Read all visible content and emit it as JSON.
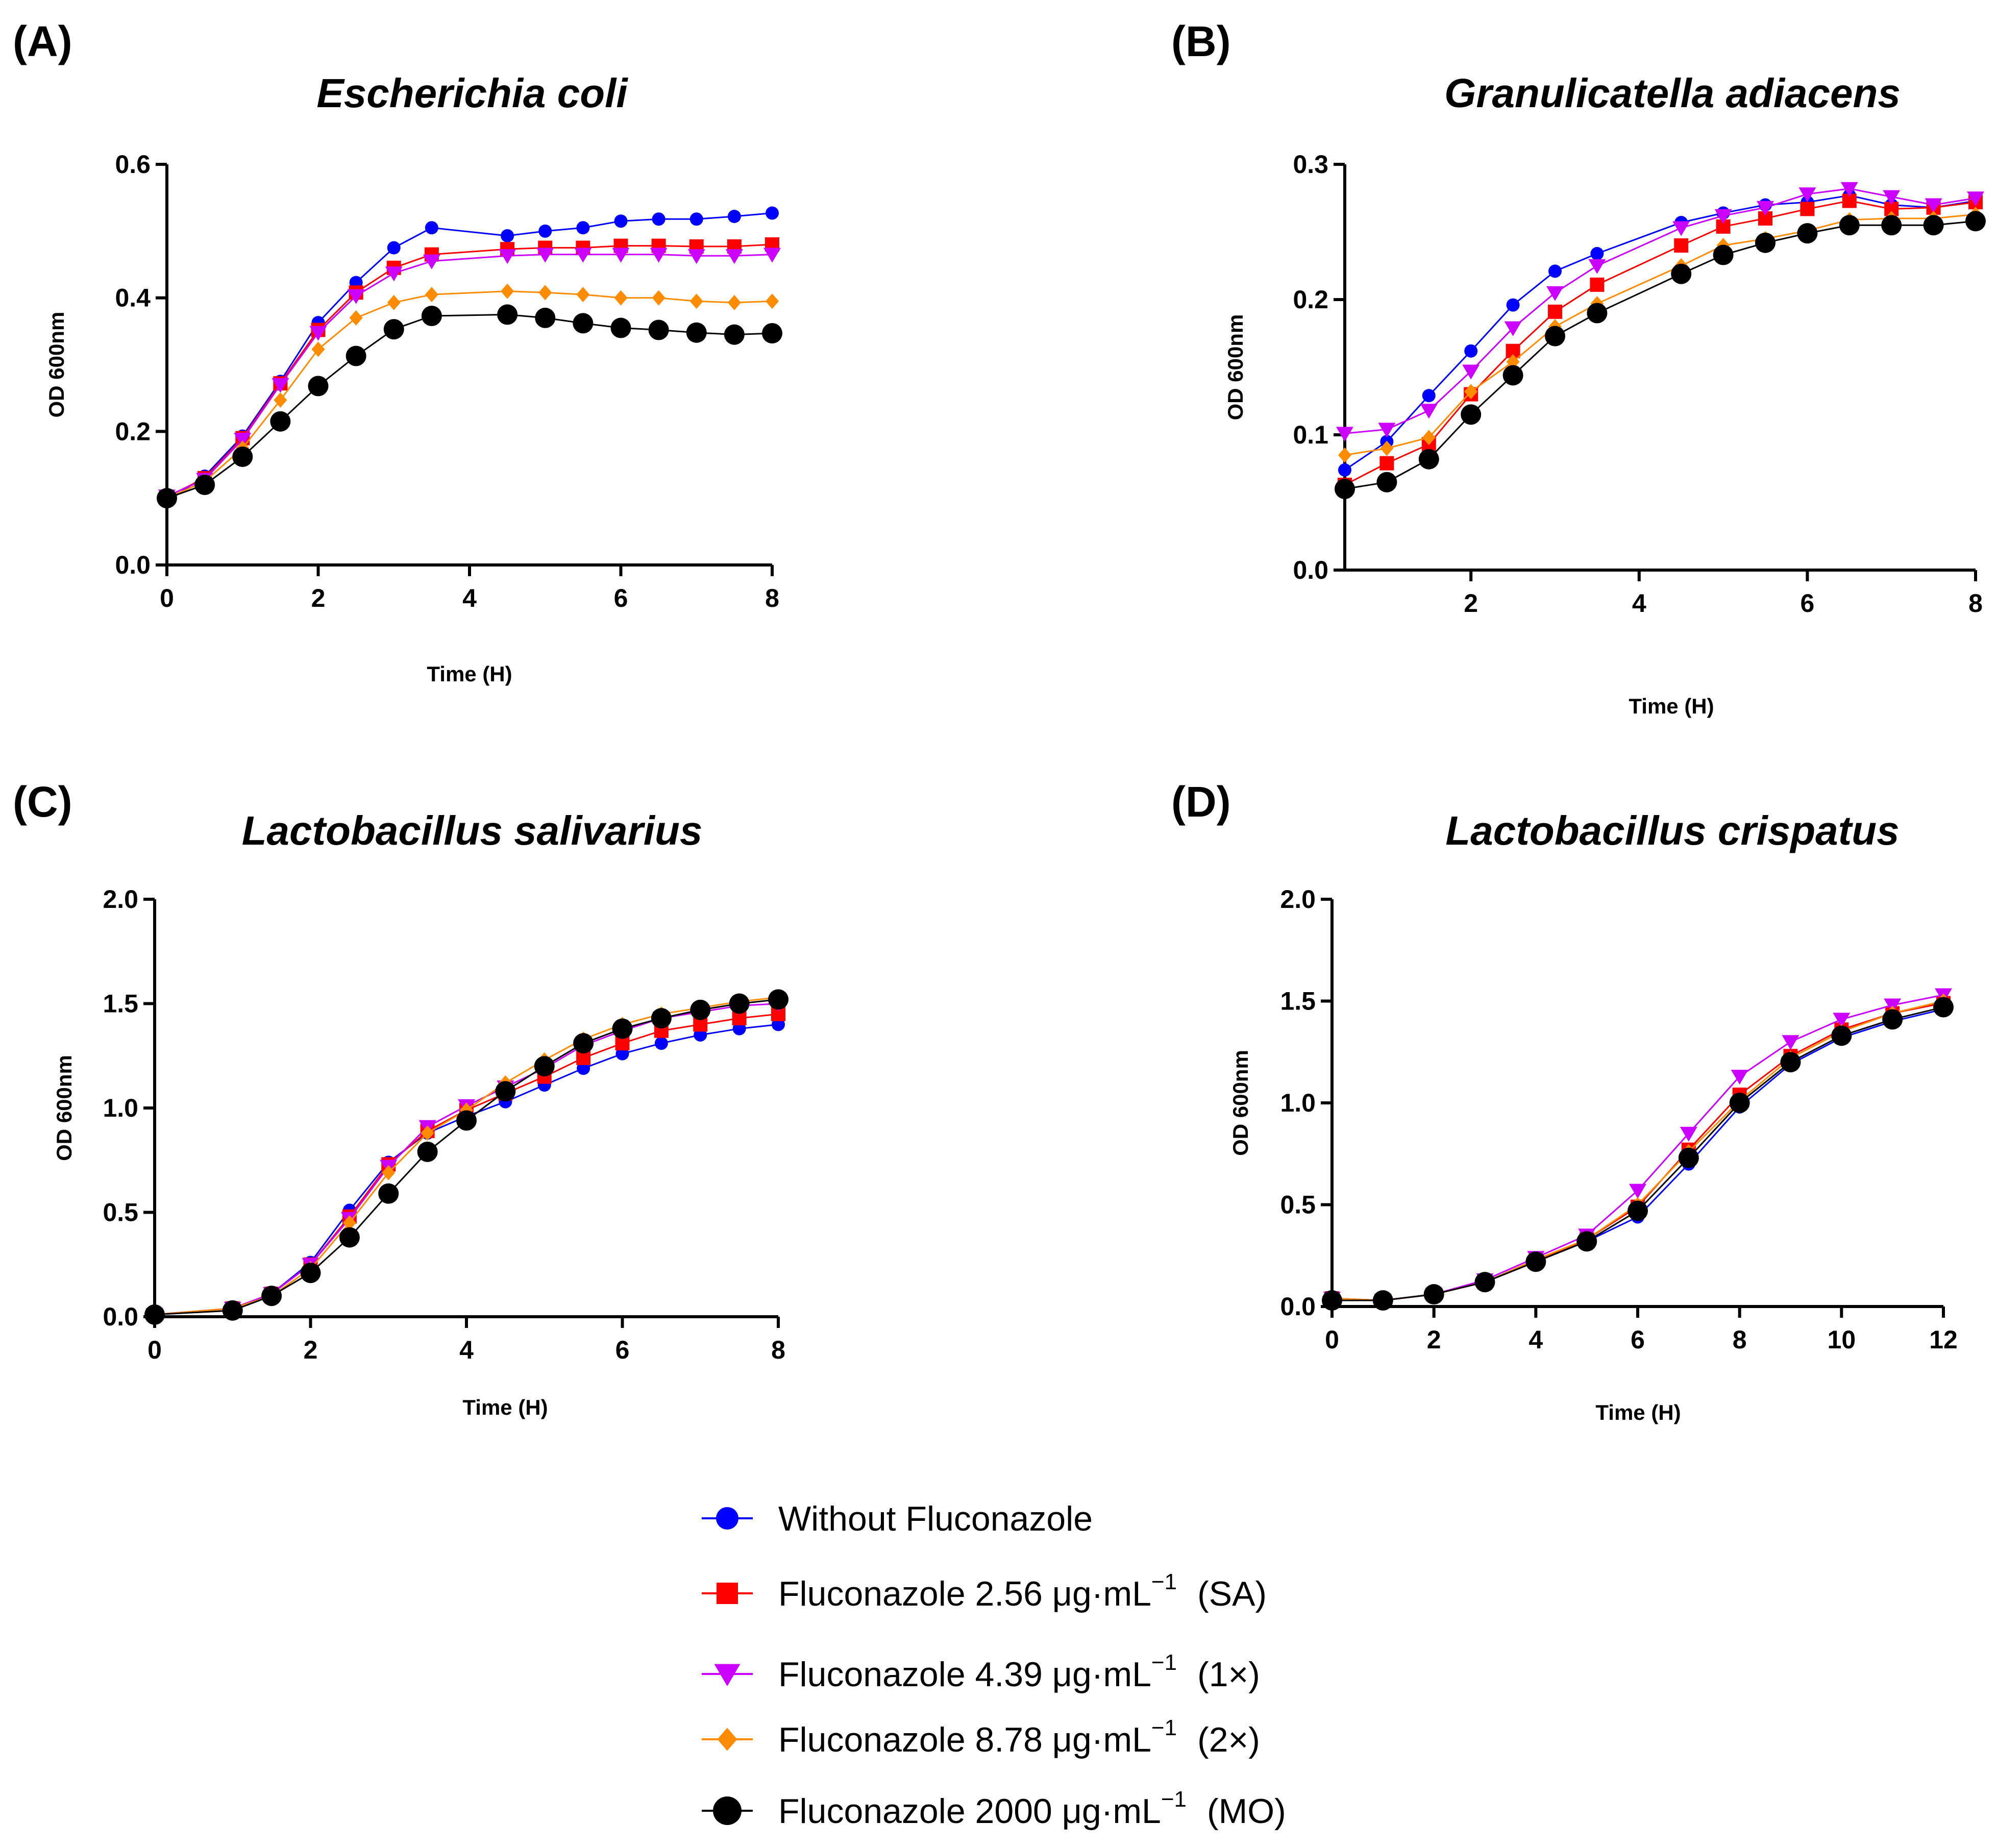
{
  "chart_data": [
    {
      "type": "line",
      "panel_label": "(A)",
      "title": "Escherichia coli",
      "xlabel": "Time (H)",
      "ylabel": "OD 600nm",
      "xlim": [
        0,
        8
      ],
      "ylim": [
        0,
        0.6
      ],
      "xticks": [
        0,
        2,
        4,
        6,
        8
      ],
      "yticks": [
        0.0,
        0.2,
        0.4,
        0.6
      ],
      "x_tick_labels": [
        "0",
        "2",
        "4",
        "6",
        "8"
      ],
      "y_tick_labels": [
        "0.0",
        "0.2",
        "0.4",
        "0.6"
      ],
      "x": [
        0,
        0.5,
        1,
        1.5,
        2,
        2.5,
        3,
        3.5,
        4.5,
        5,
        5.5,
        6,
        6.5,
        7,
        7.5,
        8
      ],
      "series": [
        {
          "key": "without",
          "values": [
            0.095,
            0.133,
            0.193,
            0.275,
            0.363,
            0.423,
            0.475,
            0.505,
            0.493,
            0.5,
            0.505,
            0.515,
            0.518,
            0.518,
            0.522,
            0.527
          ]
        },
        {
          "key": "sa",
          "values": [
            0.102,
            0.13,
            0.19,
            0.272,
            0.352,
            0.408,
            0.445,
            0.465,
            0.473,
            0.475,
            0.475,
            0.478,
            0.478,
            0.477,
            0.477,
            0.48
          ]
        },
        {
          "key": "x1",
          "values": [
            0.103,
            0.128,
            0.188,
            0.27,
            0.348,
            0.403,
            0.437,
            0.455,
            0.463,
            0.465,
            0.465,
            0.465,
            0.465,
            0.463,
            0.463,
            0.465
          ]
        },
        {
          "key": "x2",
          "values": [
            0.1,
            0.125,
            0.175,
            0.247,
            0.323,
            0.37,
            0.393,
            0.405,
            0.41,
            0.408,
            0.405,
            0.4,
            0.4,
            0.395,
            0.393,
            0.395
          ]
        },
        {
          "key": "mo",
          "values": [
            0.1,
            0.12,
            0.162,
            0.215,
            0.268,
            0.313,
            0.353,
            0.373,
            0.375,
            0.37,
            0.362,
            0.355,
            0.352,
            0.348,
            0.345,
            0.347
          ]
        }
      ]
    },
    {
      "type": "line",
      "panel_label": "(B)",
      "title": "Granulicatella adiacens",
      "xlabel": "Time (H)",
      "ylabel": "OD 600nm",
      "xlim": [
        0.5,
        8
      ],
      "ylim": [
        0,
        0.3
      ],
      "xticks": [
        2,
        4,
        6,
        8
      ],
      "yticks": [
        0.0,
        0.1,
        0.2,
        0.3
      ],
      "x_tick_labels": [
        "2",
        "4",
        "6",
        "8"
      ],
      "y_tick_labels": [
        "0.0",
        "0.1",
        "0.2",
        "0.3"
      ],
      "x": [
        0.5,
        1,
        1.5,
        2,
        2.5,
        3,
        3.5,
        4.5,
        5,
        5.5,
        6,
        6.5,
        7,
        7.5,
        8
      ],
      "series": [
        {
          "key": "without",
          "values": [
            0.074,
            0.095,
            0.129,
            0.162,
            0.196,
            0.221,
            0.234,
            0.257,
            0.264,
            0.27,
            0.272,
            0.277,
            0.27,
            0.268,
            0.273
          ]
        },
        {
          "key": "sa",
          "values": [
            0.063,
            0.079,
            0.093,
            0.13,
            0.162,
            0.191,
            0.211,
            0.24,
            0.254,
            0.26,
            0.267,
            0.273,
            0.267,
            0.268,
            0.272
          ]
        },
        {
          "key": "x1",
          "values": [
            0.101,
            0.104,
            0.118,
            0.147,
            0.179,
            0.205,
            0.225,
            0.253,
            0.262,
            0.268,
            0.278,
            0.282,
            0.276,
            0.27,
            0.275
          ]
        },
        {
          "key": "x2",
          "values": [
            0.085,
            0.09,
            0.098,
            0.132,
            0.154,
            0.18,
            0.197,
            0.225,
            0.24,
            0.245,
            0.251,
            0.259,
            0.26,
            0.26,
            0.263
          ]
        },
        {
          "key": "mo",
          "values": [
            0.06,
            0.065,
            0.082,
            0.115,
            0.144,
            0.173,
            0.19,
            0.219,
            0.233,
            0.242,
            0.249,
            0.255,
            0.255,
            0.255,
            0.258
          ]
        }
      ]
    },
    {
      "type": "line",
      "panel_label": "(C)",
      "title": "Lactobacillus salivarius",
      "xlabel": "Time (H)",
      "ylabel": "OD 600nm",
      "xlim": [
        0,
        8
      ],
      "ylim": [
        0,
        2.0
      ],
      "xticks": [
        0,
        2,
        4,
        6,
        8
      ],
      "yticks": [
        0.0,
        0.5,
        1.0,
        1.5,
        2.0
      ],
      "x_tick_labels": [
        "0",
        "2",
        "4",
        "6",
        "8"
      ],
      "y_tick_labels": [
        "0.0",
        "0.5",
        "1.0",
        "1.5",
        "2.0"
      ],
      "x": [
        0,
        1,
        1.5,
        2,
        2.5,
        3,
        3.5,
        4,
        4.5,
        5,
        5.5,
        6,
        6.5,
        7,
        7.5,
        8
      ],
      "series": [
        {
          "key": "without",
          "values": [
            0.01,
            0.04,
            0.11,
            0.26,
            0.51,
            0.74,
            0.88,
            0.96,
            1.03,
            1.11,
            1.19,
            1.26,
            1.31,
            1.35,
            1.38,
            1.4
          ]
        },
        {
          "key": "sa",
          "values": [
            0.01,
            0.04,
            0.11,
            0.25,
            0.48,
            0.73,
            0.89,
            0.99,
            1.07,
            1.15,
            1.24,
            1.31,
            1.37,
            1.4,
            1.43,
            1.45
          ]
        },
        {
          "key": "x1",
          "values": [
            0.01,
            0.04,
            0.11,
            0.25,
            0.47,
            0.72,
            0.91,
            1.01,
            1.1,
            1.19,
            1.3,
            1.37,
            1.43,
            1.46,
            1.49,
            1.5
          ]
        },
        {
          "key": "x2",
          "values": [
            0.01,
            0.04,
            0.1,
            0.23,
            0.45,
            0.69,
            0.88,
            0.99,
            1.12,
            1.23,
            1.33,
            1.4,
            1.45,
            1.48,
            1.51,
            1.53
          ]
        },
        {
          "key": "mo",
          "values": [
            0.01,
            0.03,
            0.1,
            0.21,
            0.38,
            0.59,
            0.79,
            0.94,
            1.08,
            1.2,
            1.31,
            1.38,
            1.43,
            1.47,
            1.5,
            1.52
          ]
        }
      ]
    },
    {
      "type": "line",
      "panel_label": "(D)",
      "title": "Lactobacillus crispatus",
      "xlabel": "Time (H)",
      "ylabel": "OD 600nm",
      "xlim": [
        0,
        12
      ],
      "ylim": [
        0,
        2.0
      ],
      "xticks": [
        0,
        2,
        4,
        6,
        8,
        10,
        12
      ],
      "yticks": [
        0.0,
        0.5,
        1.0,
        1.5,
        2.0
      ],
      "x_tick_labels": [
        "0",
        "2",
        "4",
        "6",
        "8",
        "10",
        "12"
      ],
      "y_tick_labels": [
        "0.0",
        "0.5",
        "1.0",
        "1.5",
        "2.0"
      ],
      "x": [
        0,
        1,
        2,
        3,
        4,
        5,
        6,
        7,
        8,
        9,
        10,
        11,
        12
      ],
      "series": [
        {
          "key": "without",
          "values": [
            0.03,
            0.03,
            0.06,
            0.12,
            0.22,
            0.32,
            0.44,
            0.7,
            0.98,
            1.19,
            1.32,
            1.4,
            1.46
          ]
        },
        {
          "key": "sa",
          "values": [
            0.04,
            0.03,
            0.06,
            0.12,
            0.22,
            0.33,
            0.49,
            0.77,
            1.04,
            1.23,
            1.36,
            1.44,
            1.49
          ]
        },
        {
          "key": "x1",
          "values": [
            0.04,
            0.03,
            0.06,
            0.13,
            0.24,
            0.35,
            0.57,
            0.85,
            1.13,
            1.3,
            1.41,
            1.48,
            1.53
          ]
        },
        {
          "key": "x2",
          "values": [
            0.04,
            0.03,
            0.06,
            0.12,
            0.23,
            0.33,
            0.5,
            0.76,
            1.01,
            1.22,
            1.35,
            1.44,
            1.5
          ]
        },
        {
          "key": "mo",
          "values": [
            0.03,
            0.03,
            0.06,
            0.12,
            0.22,
            0.32,
            0.47,
            0.73,
            1.0,
            1.2,
            1.33,
            1.41,
            1.47
          ]
        }
      ]
    }
  ],
  "legend": [
    {
      "key": "without",
      "label": "Without Fluconazole",
      "sup": "",
      "suffix": "",
      "color": "#0000FF",
      "marker": "circle-small"
    },
    {
      "key": "sa",
      "label": "Fluconazole 2.56 μg·mL",
      "sup": "−1",
      "suffix": "(SA)",
      "color": "#FF0000",
      "marker": "square"
    },
    {
      "key": "x1",
      "label": "Fluconazole 4.39 μg·mL",
      "sup": "−1",
      "suffix": "(1×)",
      "color": "#CC00FF",
      "marker": "triangle-down"
    },
    {
      "key": "x2",
      "label": "Fluconazole 8.78 μg·mL",
      "sup": "−1",
      "suffix": "(2×)",
      "color": "#FF8C00",
      "marker": "diamond"
    },
    {
      "key": "mo",
      "label": "Fluconazole 2000 μg·mL",
      "sup": "−1",
      "suffix": "(MO)",
      "color": "#000000",
      "marker": "circle-large"
    }
  ]
}
